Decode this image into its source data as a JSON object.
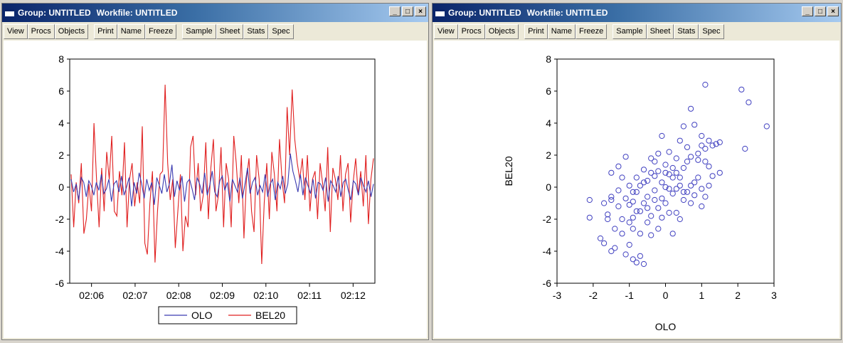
{
  "windows": [
    {
      "title_group": "Group: UNTITLED",
      "title_workfile": "Workfile: UNTITLED",
      "buttons": {
        "minimize": "_",
        "maximize": "□",
        "close": "×"
      },
      "toolbar": [
        "View",
        "Procs",
        "Objects",
        "Print",
        "Name",
        "Freeze",
        "Sample",
        "Sheet",
        "Stats",
        "Spec"
      ]
    },
    {
      "title_group": "Group: UNTITLED",
      "title_workfile": "Workfile: UNTITLED",
      "buttons": {
        "minimize": "_",
        "maximize": "□",
        "close": "×"
      },
      "toolbar": [
        "View",
        "Procs",
        "Objects",
        "Print",
        "Name",
        "Freeze",
        "Sample",
        "Sheet",
        "Stats",
        "Spec"
      ]
    }
  ],
  "colors": {
    "olo": "#3a3ab0",
    "bel20": "#e02020",
    "scatter": "#4040c0"
  },
  "chart_data": [
    {
      "type": "line",
      "xlabel": "",
      "ylabel": "",
      "ylim": [
        -6,
        8
      ],
      "yticks": [
        "8",
        "6",
        "4",
        "2",
        "0",
        "-2",
        "-4",
        "-6"
      ],
      "xticks": [
        "02:06",
        "02:07",
        "02:08",
        "02:09",
        "02:10",
        "02:11",
        "02:12"
      ],
      "legend_position": "bottom",
      "series": [
        {
          "name": "OLO",
          "values": [
            0.5,
            -0.3,
            0.2,
            -0.8,
            0.6,
            0.3,
            -0.6,
            0.4,
            0.1,
            -0.5,
            0.3,
            -0.2,
            0.8,
            -0.4,
            -0.1,
            0.5,
            -0.9,
            0.2,
            0.4,
            -0.3,
            0.7,
            -0.5,
            0.0,
            0.6,
            -1.2,
            0.3,
            -0.4,
            0.9,
            0.2,
            -0.7,
            0.5,
            -0.2,
            0.3,
            -1.1,
            0.6,
            0.1,
            -0.4,
            0.8,
            -0.3,
            0.2,
            1.4,
            -0.6,
            0.4,
            -0.2,
            0.7,
            -0.9,
            0.3,
            0.5,
            -0.1,
            -0.8,
            0.6,
            0.2,
            -0.4,
            0.9,
            -0.5,
            0.1,
            1.0,
            -0.3,
            -0.6,
            0.4,
            0.7,
            -0.2,
            0.3,
            -0.9,
            0.5,
            0.1,
            -0.3,
            0.6,
            -0.7,
            0.2,
            1.2,
            -0.4,
            0.3,
            0.6,
            -0.5,
            0.1,
            -0.3,
            0.8,
            -0.6,
            0.2,
            0.5,
            -0.8,
            0.3,
            -0.1,
            0.7,
            -0.4,
            0.2,
            2.1,
            1.0,
            0.4,
            -0.3,
            0.8,
            -0.5,
            0.6,
            0.1,
            -0.4,
            0.5,
            -0.7,
            0.3,
            0.2,
            -0.2,
            0.6,
            -0.9,
            0.4,
            0.1,
            -0.3,
            0.7,
            -0.6,
            0.3,
            0.5,
            -0.2,
            -0.8,
            0.4,
            0.2,
            -0.5,
            0.6,
            0.1,
            -0.3,
            0.4,
            -0.6,
            0.2
          ]
        },
        {
          "name": "BEL20",
          "values": [
            0.8,
            -2.5,
            0.3,
            -1.0,
            1.5,
            -2.9,
            -2.0,
            0.2,
            -1.5,
            4.0,
            0.5,
            -2.5,
            1.2,
            -1.5,
            2.2,
            0.5,
            3.2,
            -1.5,
            -1.8,
            1.0,
            -0.5,
            2.8,
            -2.5,
            0.5,
            1.5,
            -1.2,
            0.3,
            -1.0,
            3.8,
            -3.5,
            -4.2,
            -1.0,
            1.0,
            -4.7,
            -1.5,
            0.8,
            1.0,
            6.4,
            1.5,
            -0.8,
            0.5,
            -3.8,
            -1.5,
            0.8,
            -4.0,
            -1.8,
            -2.5,
            2.5,
            3.2,
            -0.5,
            1.5,
            -1.5,
            -0.5,
            2.8,
            -2.0,
            1.2,
            3.0,
            -1.5,
            -0.5,
            2.5,
            -2.5,
            1.5,
            0.5,
            -2.5,
            3.2,
            1.5,
            -1.0,
            2.0,
            -3.2,
            0.5,
            1.8,
            -1.5,
            -2.8,
            2.0,
            0.5,
            -4.8,
            -1.0,
            1.5,
            -2.0,
            2.2,
            0.8,
            -1.5,
            3.0,
            0.5,
            -1.0,
            5.0,
            2.0,
            6.1,
            3.0,
            1.5,
            0.5,
            1.8,
            -0.8,
            2.0,
            -1.5,
            0.5,
            1.0,
            -2.0,
            1.5,
            0.2,
            -1.5,
            2.5,
            -2.8,
            1.2,
            0.5,
            -0.8,
            2.0,
            -1.5,
            0.8,
            1.5,
            -2.2,
            0.3,
            1.8,
            -0.5,
            1.0,
            -1.2,
            2.0,
            -2.3,
            0.5,
            1.8
          ]
        }
      ]
    },
    {
      "type": "scatter",
      "xlabel": "OLO",
      "ylabel": "BEL20",
      "xlim": [
        -3,
        3
      ],
      "ylim": [
        -6,
        8
      ],
      "xticks": [
        "-3",
        "-2",
        "-1",
        "0",
        "1",
        "2",
        "3"
      ],
      "yticks": [
        "8",
        "6",
        "4",
        "2",
        "0",
        "-2",
        "-4",
        "-6"
      ],
      "points": [
        [
          -2.1,
          -0.8
        ],
        [
          -2.1,
          -1.9
        ],
        [
          -1.8,
          -3.2
        ],
        [
          -1.7,
          -3.5
        ],
        [
          -1.6,
          -2.0
        ],
        [
          -1.6,
          -1.7
        ],
        [
          -1.5,
          -0.8
        ],
        [
          -1.5,
          -0.6
        ],
        [
          -1.5,
          -4.0
        ],
        [
          -1.4,
          -2.6
        ],
        [
          -1.5,
          0.9
        ],
        [
          -1.3,
          1.3
        ],
        [
          -1.3,
          -1.2
        ],
        [
          -1.2,
          -2.9
        ],
        [
          -1.1,
          -0.7
        ],
        [
          -1.1,
          -4.2
        ],
        [
          -1.0,
          -1.1
        ],
        [
          -1.0,
          -2.2
        ],
        [
          -1.0,
          -3.6
        ],
        [
          -0.9,
          -4.5
        ],
        [
          -0.9,
          -2.6
        ],
        [
          -0.9,
          -0.3
        ],
        [
          -0.8,
          -4.7
        ],
        [
          -0.8,
          0.6
        ],
        [
          -0.8,
          -1.5
        ],
        [
          -0.7,
          -4.3
        ],
        [
          -0.7,
          0.1
        ],
        [
          -0.7,
          -2.9
        ],
        [
          -0.6,
          -4.8
        ],
        [
          -0.6,
          1.1
        ],
        [
          -0.6,
          -1.0
        ],
        [
          -0.5,
          -2.2
        ],
        [
          -0.5,
          0.4
        ],
        [
          -0.5,
          -0.6
        ],
        [
          -0.4,
          1.8
        ],
        [
          -0.4,
          -1.8
        ],
        [
          -0.4,
          -3.0
        ],
        [
          -0.3,
          1.6
        ],
        [
          -0.3,
          -0.2
        ],
        [
          -0.3,
          0.7
        ],
        [
          -0.2,
          -1.3
        ],
        [
          -0.2,
          2.1
        ],
        [
          -0.1,
          -0.7
        ],
        [
          -0.1,
          0.3
        ],
        [
          -0.1,
          3.2
        ],
        [
          0.0,
          -1.0
        ],
        [
          0.0,
          1.4
        ],
        [
          0.0,
          0.0
        ],
        [
          0.1,
          -1.6
        ],
        [
          0.1,
          0.8
        ],
        [
          0.1,
          2.2
        ],
        [
          0.2,
          -2.9
        ],
        [
          0.2,
          0.6
        ],
        [
          0.2,
          -0.4
        ],
        [
          0.3,
          1.8
        ],
        [
          0.3,
          -0.1
        ],
        [
          0.3,
          0.9
        ],
        [
          0.4,
          -2.0
        ],
        [
          0.4,
          2.9
        ],
        [
          0.4,
          0.1
        ],
        [
          0.5,
          3.8
        ],
        [
          0.5,
          -0.8
        ],
        [
          0.5,
          1.2
        ],
        [
          0.6,
          2.5
        ],
        [
          0.6,
          -0.3
        ],
        [
          0.7,
          0.1
        ],
        [
          0.7,
          1.9
        ],
        [
          0.7,
          4.9
        ],
        [
          0.8,
          -0.5
        ],
        [
          0.8,
          3.9
        ],
        [
          0.9,
          2.1
        ],
        [
          0.9,
          0.6
        ],
        [
          1.0,
          -1.2
        ],
        [
          1.0,
          3.2
        ],
        [
          1.0,
          2.6
        ],
        [
          1.1,
          6.4
        ],
        [
          1.1,
          2.4
        ],
        [
          1.1,
          -0.6
        ],
        [
          1.2,
          1.3
        ],
        [
          1.2,
          2.9
        ],
        [
          1.3,
          2.6
        ],
        [
          1.3,
          0.7
        ],
        [
          1.4,
          2.7
        ],
        [
          1.5,
          0.9
        ],
        [
          1.5,
          2.8
        ],
        [
          2.1,
          6.1
        ],
        [
          2.2,
          2.4
        ],
        [
          2.3,
          5.3
        ],
        [
          2.8,
          3.8
        ],
        [
          -1.3,
          -0.2
        ],
        [
          -1.2,
          0.6
        ],
        [
          -1.1,
          1.9
        ],
        [
          -1.0,
          0.1
        ],
        [
          -0.9,
          -1.9
        ],
        [
          -0.8,
          -0.3
        ],
        [
          -0.7,
          -1.5
        ],
        [
          -0.6,
          0.3
        ],
        [
          -0.5,
          -1.3
        ],
        [
          -0.4,
          0.9
        ],
        [
          -0.3,
          -0.8
        ],
        [
          -0.2,
          -2.6
        ],
        [
          -0.2,
          1.0
        ],
        [
          -0.1,
          -1.9
        ],
        [
          0.0,
          0.9
        ],
        [
          0.1,
          -0.1
        ],
        [
          0.2,
          1.2
        ],
        [
          0.3,
          -1.6
        ],
        [
          0.4,
          0.6
        ],
        [
          0.5,
          -0.3
        ],
        [
          0.6,
          1.6
        ],
        [
          0.7,
          -1.0
        ],
        [
          0.8,
          0.3
        ],
        [
          0.9,
          1.7
        ],
        [
          1.0,
          -0.1
        ],
        [
          1.1,
          1.6
        ],
        [
          1.2,
          0.1
        ],
        [
          -1.7,
          -1.0
        ],
        [
          -1.4,
          -3.8
        ],
        [
          -1.2,
          -2.0
        ],
        [
          -0.9,
          -0.9
        ]
      ]
    }
  ]
}
